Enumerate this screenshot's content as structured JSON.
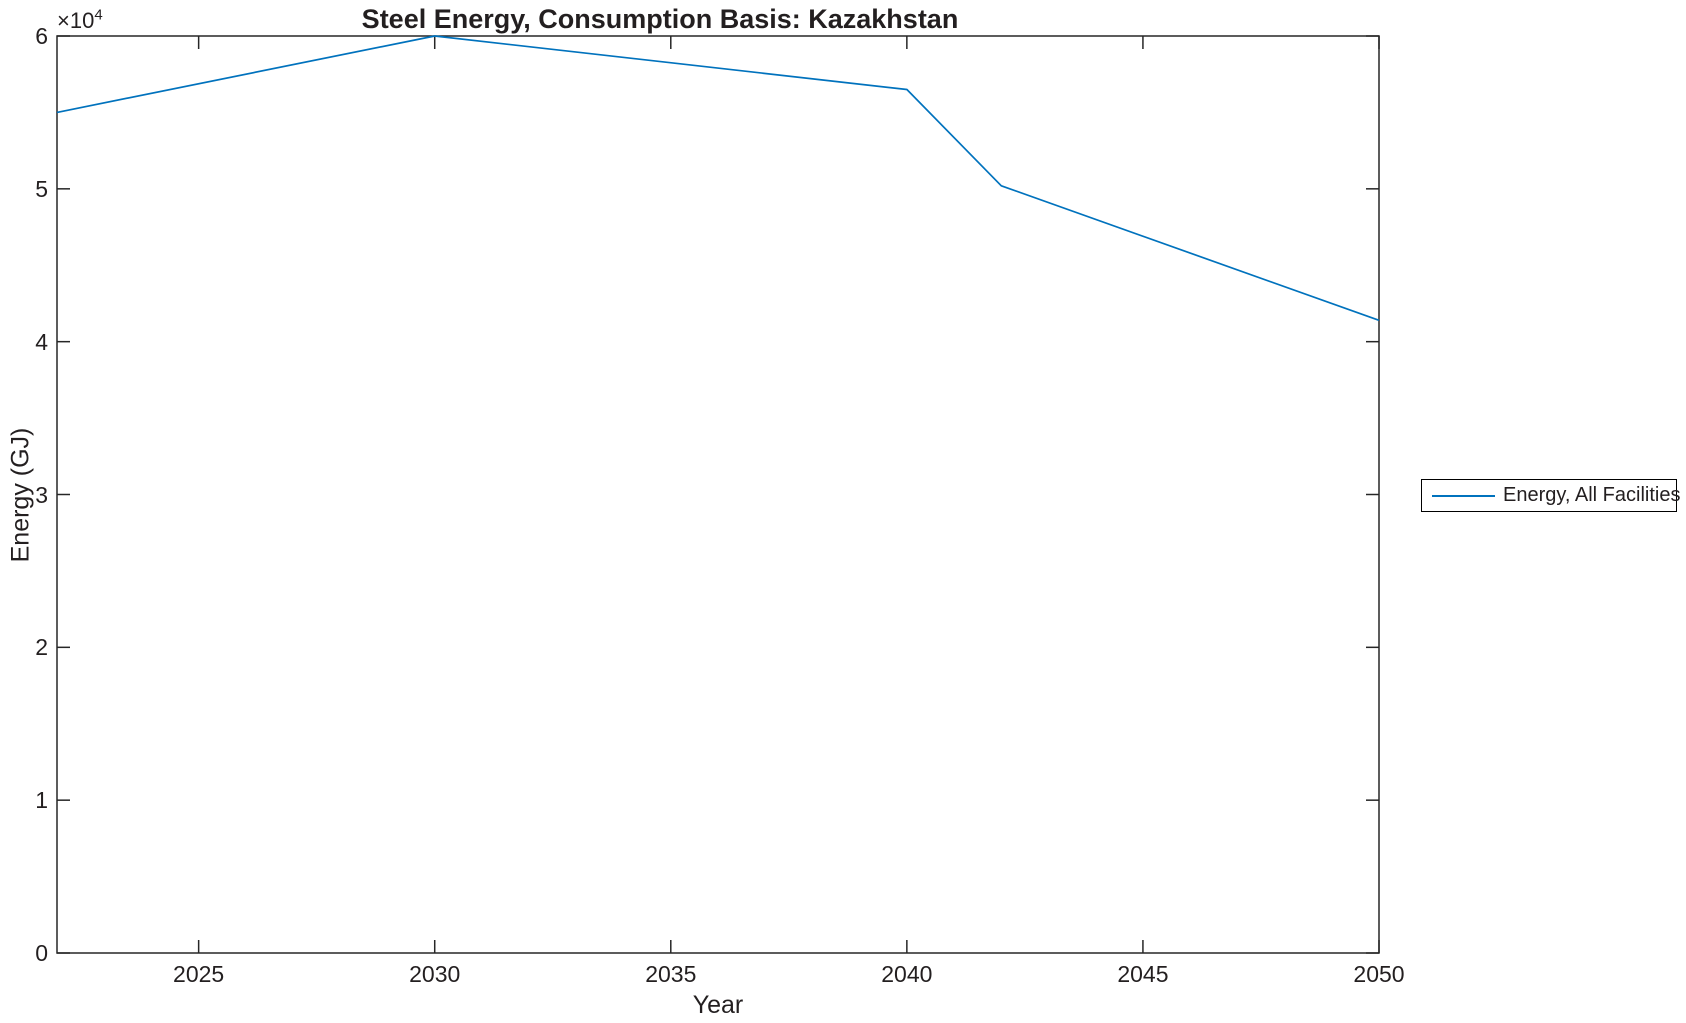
{
  "colors": {
    "line": "#0072BD",
    "axis": "#262626",
    "text": "#231f20",
    "background": "#ffffff"
  },
  "chart_data": {
    "type": "line",
    "title": "Steel Energy, Consumption Basis: Kazakhstan",
    "xlabel": "Year",
    "ylabel": "Energy (GJ)",
    "y_exponent": {
      "base": "×10",
      "power": "4"
    },
    "xlim": [
      2022,
      2050
    ],
    "ylim": [
      0,
      60000
    ],
    "x_ticks": [
      2025,
      2030,
      2035,
      2040,
      2045,
      2050
    ],
    "y_ticks": [
      0,
      10000,
      20000,
      30000,
      40000,
      50000,
      60000
    ],
    "y_tick_labels": [
      "0",
      "1",
      "2",
      "3",
      "4",
      "5",
      "6"
    ],
    "grid": false,
    "legend_position": "outside-right",
    "series": [
      {
        "name": "Energy, All Facilities",
        "x": [
          2022,
          2030,
          2040,
          2042,
          2050
        ],
        "y": [
          55000,
          60000,
          56500,
          50200,
          41400
        ]
      }
    ]
  }
}
